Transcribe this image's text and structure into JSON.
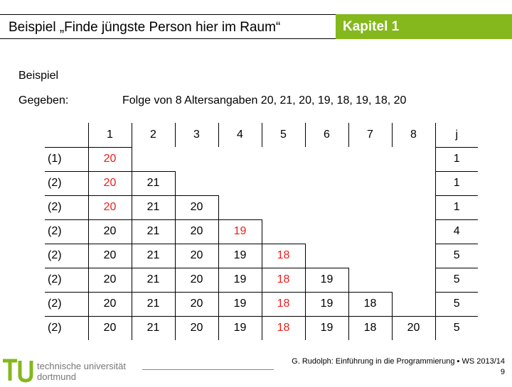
{
  "header": {
    "title": "Beispiel „Finde jüngste Person hier im Raum“",
    "badge": "Kapitel 1"
  },
  "section_title": "Beispiel",
  "given": {
    "label": "Gegeben:",
    "text": "Folge von 8 Altersangaben 20, 21, 20, 19, 18, 19, 18, 20"
  },
  "table": {
    "headers": [
      "1",
      "2",
      "3",
      "4",
      "5",
      "6",
      "7",
      "8",
      "j"
    ],
    "rows": [
      {
        "label": "(1)",
        "values": [
          "20",
          "",
          "",
          "",
          "",
          "",
          "",
          ""
        ],
        "j": "1"
      },
      {
        "label": "(2)",
        "values": [
          "20",
          "21",
          "",
          "",
          "",
          "",
          "",
          ""
        ],
        "j": "1"
      },
      {
        "label": "(2)",
        "values": [
          "20",
          "21",
          "20",
          "",
          "",
          "",
          "",
          ""
        ],
        "j": "1"
      },
      {
        "label": "(2)",
        "values": [
          "20",
          "21",
          "20",
          "19",
          "",
          "",
          "",
          ""
        ],
        "j": "4"
      },
      {
        "label": "(2)",
        "values": [
          "20",
          "21",
          "20",
          "19",
          "18",
          "",
          "",
          ""
        ],
        "j": "5"
      },
      {
        "label": "(2)",
        "values": [
          "20",
          "21",
          "20",
          "19",
          "18",
          "19",
          "",
          ""
        ],
        "j": "5"
      },
      {
        "label": "(2)",
        "values": [
          "20",
          "21",
          "20",
          "19",
          "18",
          "19",
          "18",
          ""
        ],
        "j": "5"
      },
      {
        "label": "(2)",
        "values": [
          "20",
          "21",
          "20",
          "19",
          "18",
          "19",
          "18",
          "20"
        ],
        "j": "5"
      }
    ],
    "highlight_positions": [
      1,
      1,
      1,
      4,
      5,
      5,
      5,
      5
    ],
    "highlight_color": "#e8201c"
  },
  "footer": {
    "logo_line1": "technische universität",
    "logo_line2": "dortmund",
    "credit": "G. Rudolph: Einführung in die Programmierung ▪ WS 2013/14",
    "page": "9",
    "logo_color": "#84b81c"
  }
}
